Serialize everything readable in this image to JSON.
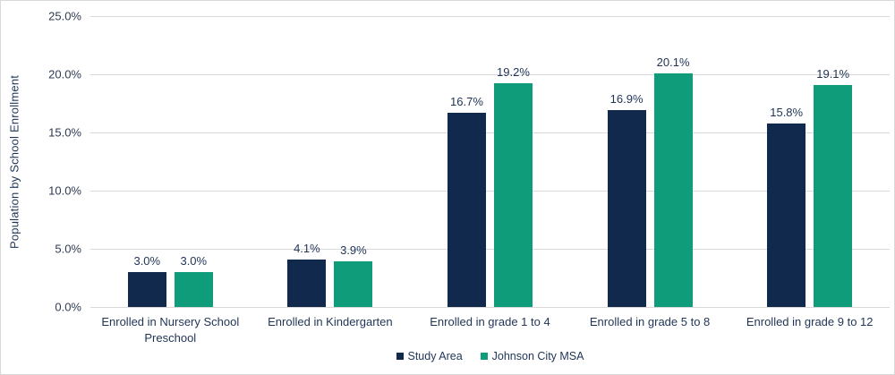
{
  "chart_data": {
    "type": "bar",
    "title": "",
    "ylabel": "Population by School Enrollment",
    "xlabel": "",
    "ylim": [
      0,
      25
    ],
    "ytick_step": 5,
    "yticks_top_to_bottom": [
      "25.0%",
      "20.0%",
      "15.0%",
      "10.0%",
      "5.0%",
      "0.0%"
    ],
    "grid": true,
    "legend_position": "bottom",
    "categories": [
      "Enrolled in Nursery School Preschool",
      "Enrolled in Kindergarten",
      "Enrolled in grade 1 to 4",
      "Enrolled in grade 5 to 8",
      "Enrolled in grade 9 to 12"
    ],
    "series": [
      {
        "name": "Study Area",
        "color": "#12294e",
        "values": [
          3.0,
          4.1,
          16.7,
          16.9,
          15.8
        ],
        "labels": [
          "3.0%",
          "4.1%",
          "16.7%",
          "16.9%",
          "15.8%"
        ]
      },
      {
        "name": "Johnson City MSA",
        "color": "#0f9c7a",
        "values": [
          3.0,
          3.9,
          19.2,
          20.1,
          19.1
        ],
        "labels": [
          "3.0%",
          "3.9%",
          "19.2%",
          "20.1%",
          "19.1%"
        ]
      }
    ]
  },
  "colors": {
    "gridline": "#d9d9d9",
    "text": "#1f3456",
    "frame_border": "#d9d9d9",
    "background": "#ffffff"
  }
}
